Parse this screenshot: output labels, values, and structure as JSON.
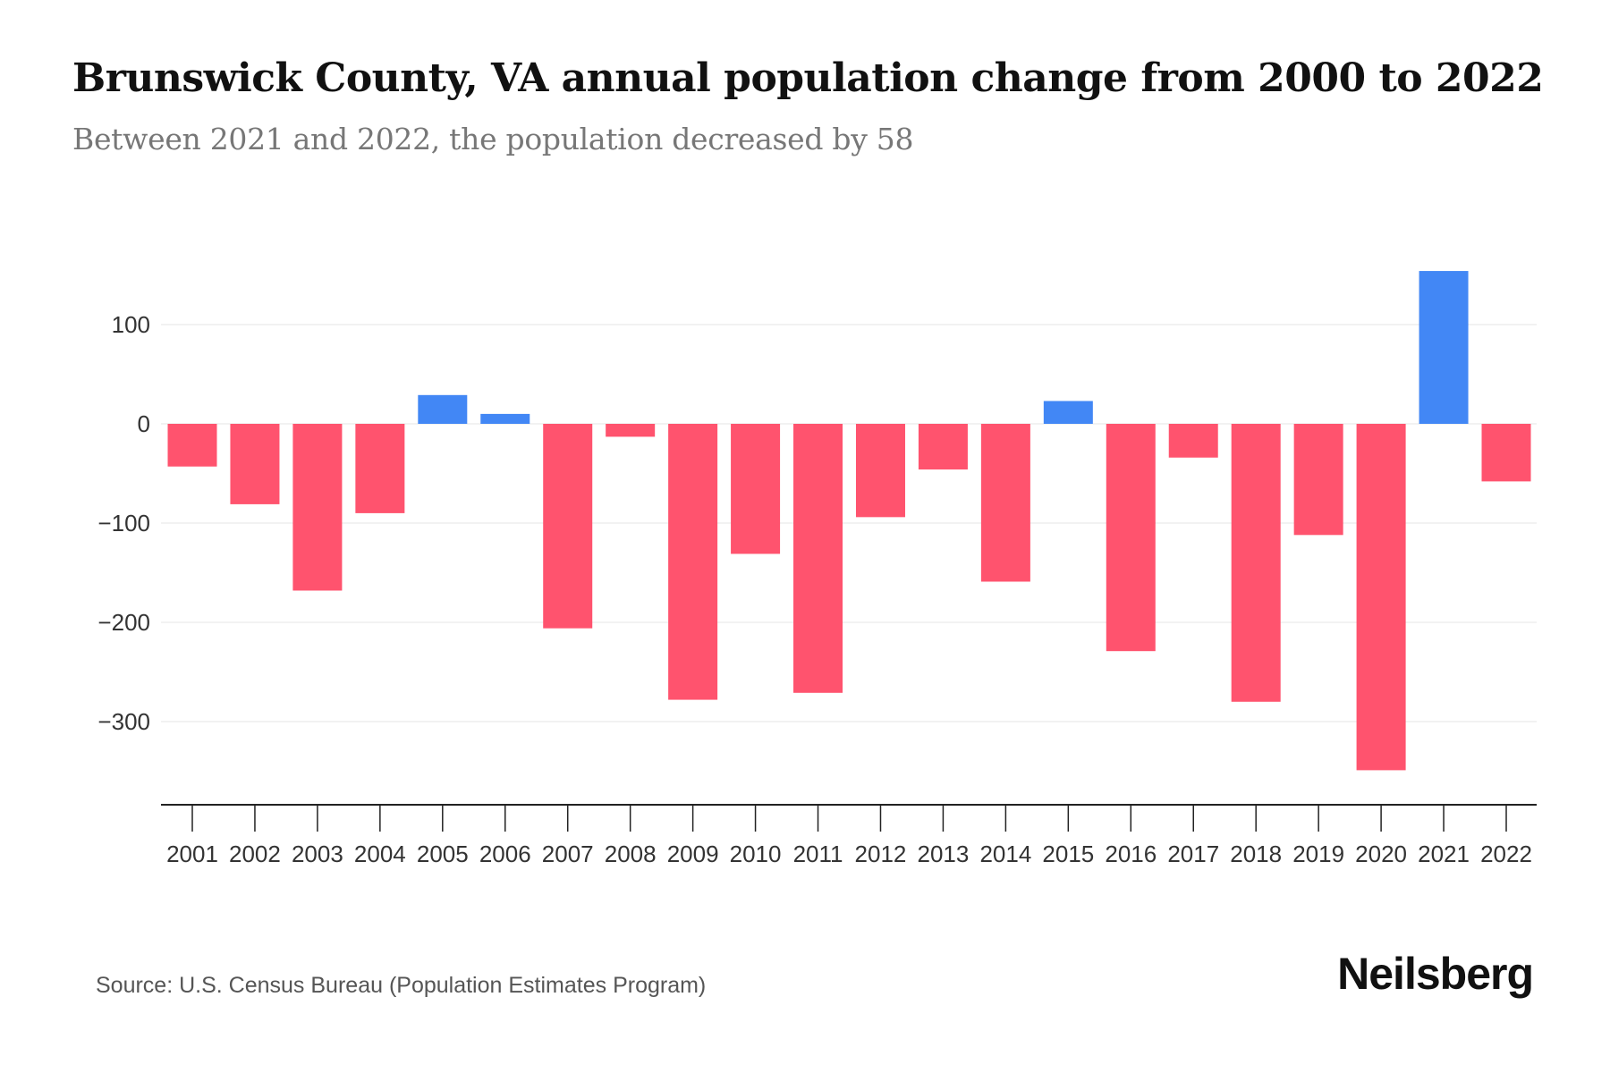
{
  "chart_data": {
    "type": "bar",
    "title": "Brunswick County, VA annual population change from 2000 to 2022",
    "subtitle": "Between 2021 and 2022, the population decreased by 58",
    "xlabel": "",
    "ylabel": "",
    "categories": [
      "2001",
      "2002",
      "2003",
      "2004",
      "2005",
      "2006",
      "2007",
      "2008",
      "2009",
      "2010",
      "2011",
      "2012",
      "2013",
      "2014",
      "2015",
      "2016",
      "2017",
      "2018",
      "2019",
      "2020",
      "2021",
      "2022"
    ],
    "values": [
      -43,
      -81,
      -168,
      -90,
      29,
      10,
      -206,
      -13,
      -278,
      -131,
      -271,
      -94,
      -46,
      -159,
      23,
      -229,
      -34,
      -280,
      -112,
      -349,
      154,
      -58
    ],
    "yticks": [
      100,
      0,
      -100,
      -200,
      -300
    ],
    "ytick_labels": [
      "100",
      "0",
      "−100",
      "−200",
      "−300"
    ],
    "ylim": [
      -384,
      160
    ],
    "grid": true,
    "colors": {
      "positive": "#4287f5",
      "negative": "#ff536e",
      "grid": "#eeeeee",
      "axis": "#222222",
      "text": "#333333"
    }
  },
  "footer": {
    "source": "Source: U.S. Census Bureau (Population Estimates Program)",
    "logo": "Neilsberg"
  }
}
